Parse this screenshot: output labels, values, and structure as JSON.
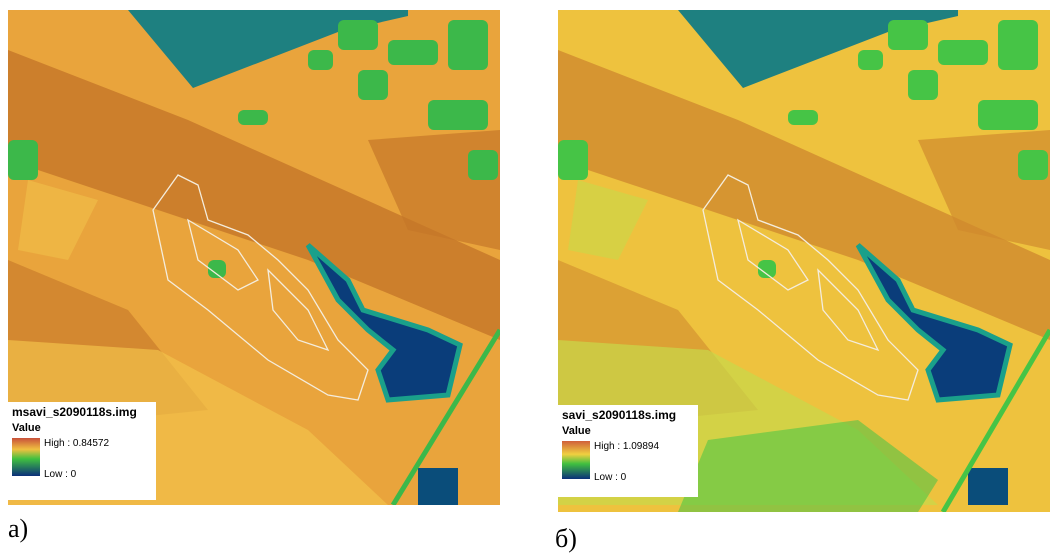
{
  "panels": [
    {
      "legend_title": "msavi_s2090118s.img",
      "legend_value": "Value",
      "high": "High : 0.84572",
      "low": "Low : 0",
      "caption": "а)"
    },
    {
      "legend_title": "savi_s2090118s.img",
      "legend_value": "Value",
      "high": "High : 1.09894",
      "low": "Low : 0",
      "caption": "б)"
    }
  ]
}
